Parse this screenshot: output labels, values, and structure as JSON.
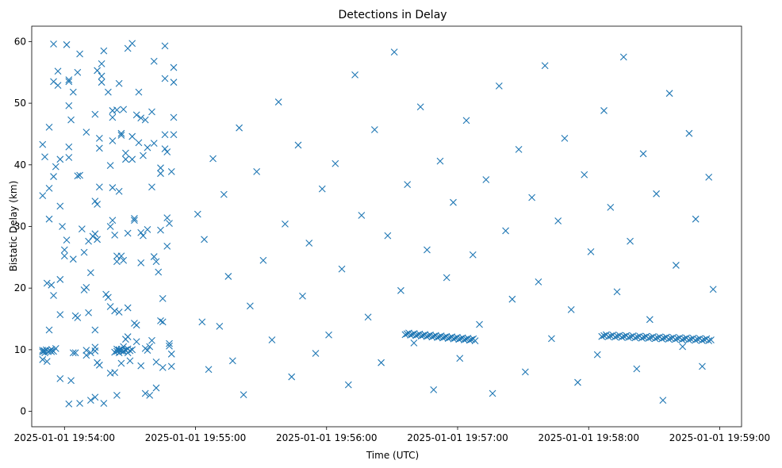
{
  "chart_data": {
    "type": "scatter",
    "title": "Detections in Delay",
    "xlabel": "Time (UTC)",
    "ylabel": "Bistatic Delay (km)",
    "marker": "x",
    "color": "#1f77b4",
    "grid": false,
    "legend": "none",
    "xlim": [
      "2025-01-01 19:53:45",
      "2025-01-01 19:59:10"
    ],
    "ylim": [
      -2.5,
      62.5
    ],
    "x_ticks": [
      "2025-01-01 19:54:00",
      "2025-01-01 19:55:00",
      "2025-01-01 19:56:00",
      "2025-01-01 19:57:00",
      "2025-01-01 19:58:00",
      "2025-01-01 19:59:00"
    ],
    "y_ticks": [
      0,
      10,
      20,
      30,
      40,
      50,
      60
    ],
    "points": [
      [
        "2025-01-01 19:53:50",
        43.3
      ],
      [
        "2025-01-01 19:53:50",
        35.0
      ],
      [
        "2025-01-01 19:53:51",
        41.3
      ],
      [
        "2025-01-01 19:53:52",
        20.8
      ],
      [
        "2025-01-01 19:53:50",
        9.9
      ],
      [
        "2025-01-01 19:53:51",
        9.5
      ],
      [
        "2025-01-01 19:53:52",
        8.1
      ],
      [
        "2025-01-01 19:53:50",
        8.4
      ],
      [
        "2025-01-01 19:53:53",
        36.2
      ],
      [
        "2025-01-01 19:53:53",
        46.1
      ],
      [
        "2025-01-01 19:53:53",
        31.2
      ],
      [
        "2025-01-01 19:53:54",
        20.5
      ],
      [
        "2025-01-01 19:53:53",
        13.2
      ],
      [
        "2025-01-01 19:53:55",
        59.6
      ],
      [
        "2025-01-01 19:53:55",
        53.5
      ],
      [
        "2025-01-01 19:53:55",
        38.1
      ],
      [
        "2025-01-01 19:53:55",
        18.8
      ],
      [
        "2025-01-01 19:53:54",
        9.7
      ],
      [
        "2025-01-01 19:53:56",
        10.2
      ],
      [
        "2025-01-01 19:53:56",
        39.7
      ],
      [
        "2025-01-01 19:53:57",
        55.2
      ],
      [
        "2025-01-01 19:53:57",
        52.9
      ],
      [
        "2025-01-01 19:53:58",
        40.9
      ],
      [
        "2025-01-01 19:53:58",
        33.3
      ],
      [
        "2025-01-01 19:53:58",
        21.4
      ],
      [
        "2025-01-01 19:53:58",
        15.7
      ],
      [
        "2025-01-01 19:53:58",
        5.3
      ],
      [
        "2025-01-01 19:53:59",
        30.0
      ],
      [
        "2025-01-01 19:54:00",
        26.2
      ],
      [
        "2025-01-01 19:54:00",
        25.2
      ],
      [
        "2025-01-01 19:54:01",
        59.5
      ],
      [
        "2025-01-01 19:54:02",
        53.8
      ],
      [
        "2025-01-01 19:54:02",
        53.5
      ],
      [
        "2025-01-01 19:54:02",
        49.6
      ],
      [
        "2025-01-01 19:54:01",
        27.8
      ],
      [
        "2025-01-01 19:54:02",
        42.9
      ],
      [
        "2025-01-01 19:54:02",
        41.2
      ],
      [
        "2025-01-01 19:54:03",
        47.3
      ],
      [
        "2025-01-01 19:54:02",
        1.2
      ],
      [
        "2025-01-01 19:54:04",
        51.8
      ],
      [
        "2025-01-01 19:54:04",
        24.7
      ],
      [
        "2025-01-01 19:54:03",
        5.0
      ],
      [
        "2025-01-01 19:54:04",
        9.5
      ],
      [
        "2025-01-01 19:54:05",
        9.5
      ],
      [
        "2025-01-01 19:54:05",
        15.5
      ],
      [
        "2025-01-01 19:54:06",
        15.2
      ],
      [
        "2025-01-01 19:54:06",
        38.2
      ],
      [
        "2025-01-01 19:54:07",
        58.0
      ],
      [
        "2025-01-01 19:54:06",
        55.0
      ],
      [
        "2025-01-01 19:54:07",
        38.3
      ],
      [
        "2025-01-01 19:54:07",
        1.3
      ],
      [
        "2025-01-01 19:54:08",
        29.6
      ],
      [
        "2025-01-01 19:54:09",
        25.8
      ],
      [
        "2025-01-01 19:54:09",
        19.7
      ],
      [
        "2025-01-01 19:54:10",
        20.1
      ],
      [
        "2025-01-01 19:54:10",
        45.3
      ],
      [
        "2025-01-01 19:54:10",
        9.9
      ],
      [
        "2025-01-01 19:54:10",
        9.1
      ],
      [
        "2025-01-01 19:54:11",
        27.6
      ],
      [
        "2025-01-01 19:54:12",
        22.5
      ],
      [
        "2025-01-01 19:54:11",
        16.0
      ],
      [
        "2025-01-01 19:54:12",
        9.5
      ],
      [
        "2025-01-01 19:54:12",
        1.8
      ],
      [
        "2025-01-01 19:54:14",
        48.2
      ],
      [
        "2025-01-01 19:54:14",
        34.1
      ],
      [
        "2025-01-01 19:54:14",
        28.8
      ],
      [
        "2025-01-01 19:54:13",
        28.4
      ],
      [
        "2025-01-01 19:54:14",
        13.2
      ],
      [
        "2025-01-01 19:54:14",
        10.4
      ],
      [
        "2025-01-01 19:54:14",
        9.8
      ],
      [
        "2025-01-01 19:54:14",
        2.3
      ],
      [
        "2025-01-01 19:54:15",
        55.3
      ],
      [
        "2025-01-01 19:54:15",
        33.6
      ],
      [
        "2025-01-01 19:54:15",
        27.9
      ],
      [
        "2025-01-01 19:54:16",
        44.3
      ],
      [
        "2025-01-01 19:54:16",
        42.7
      ],
      [
        "2025-01-01 19:54:16",
        36.4
      ],
      [
        "2025-01-01 19:54:15",
        7.9
      ],
      [
        "2025-01-01 19:54:16",
        7.5
      ],
      [
        "2025-01-01 19:54:17",
        56.4
      ],
      [
        "2025-01-01 19:54:17",
        54.4
      ],
      [
        "2025-01-01 19:54:17",
        53.4
      ],
      [
        "2025-01-01 19:54:18",
        58.5
      ],
      [
        "2025-01-01 19:54:18",
        1.3
      ],
      [
        "2025-01-01 19:54:19",
        19.0
      ],
      [
        "2025-01-01 19:54:20",
        18.5
      ],
      [
        "2025-01-01 19:54:20",
        51.8
      ],
      [
        "2025-01-01 19:54:21",
        39.9
      ],
      [
        "2025-01-01 19:54:21",
        30.0
      ],
      [
        "2025-01-01 19:54:21",
        17.0
      ],
      [
        "2025-01-01 19:54:21",
        6.2
      ],
      [
        "2025-01-01 19:54:22",
        48.8
      ],
      [
        "2025-01-01 19:54:22",
        47.7
      ],
      [
        "2025-01-01 19:54:22",
        43.9
      ],
      [
        "2025-01-01 19:54:22",
        36.3
      ],
      [
        "2025-01-01 19:54:22",
        31.0
      ],
      [
        "2025-01-01 19:54:23",
        28.6
      ],
      [
        "2025-01-01 19:54:23",
        16.3
      ],
      [
        "2025-01-01 19:54:23",
        9.6
      ],
      [
        "2025-01-01 19:54:23",
        6.3
      ],
      [
        "2025-01-01 19:54:24",
        48.9
      ],
      [
        "2025-01-01 19:54:24",
        25.2
      ],
      [
        "2025-01-01 19:54:24",
        24.3
      ],
      [
        "2025-01-01 19:54:24",
        10.1
      ],
      [
        "2025-01-01 19:54:24",
        2.6
      ],
      [
        "2025-01-01 19:54:25",
        53.2
      ],
      [
        "2025-01-01 19:54:25",
        35.7
      ],
      [
        "2025-01-01 19:54:25",
        16.1
      ],
      [
        "2025-01-01 19:54:25",
        10.0
      ],
      [
        "2025-01-01 19:54:25",
        9.5
      ],
      [
        "2025-01-01 19:54:26",
        44.8
      ],
      [
        "2025-01-01 19:54:26",
        45.1
      ],
      [
        "2025-01-01 19:54:26",
        25.2
      ],
      [
        "2025-01-01 19:54:26",
        9.8
      ],
      [
        "2025-01-01 19:54:26",
        7.8
      ],
      [
        "2025-01-01 19:54:27",
        49.0
      ],
      [
        "2025-01-01 19:54:27",
        24.5
      ],
      [
        "2025-01-01 19:54:27",
        10.5
      ],
      [
        "2025-01-01 19:54:27",
        9.7
      ],
      [
        "2025-01-01 19:54:28",
        41.9
      ],
      [
        "2025-01-01 19:54:28",
        40.9
      ],
      [
        "2025-01-01 19:54:28",
        11.7
      ],
      [
        "2025-01-01 19:54:29",
        58.9
      ],
      [
        "2025-01-01 19:54:29",
        28.9
      ],
      [
        "2025-01-01 19:54:29",
        16.8
      ],
      [
        "2025-01-01 19:54:29",
        12.1
      ],
      [
        "2025-01-01 19:54:29",
        9.5
      ],
      [
        "2025-01-01 19:54:30",
        8.2
      ],
      [
        "2025-01-01 19:54:31",
        59.7
      ],
      [
        "2025-01-01 19:54:31",
        44.6
      ],
      [
        "2025-01-01 19:54:31",
        40.9
      ],
      [
        "2025-01-01 19:54:32",
        31.0
      ],
      [
        "2025-01-01 19:54:32",
        31.3
      ],
      [
        "2025-01-01 19:54:32",
        14.3
      ],
      [
        "2025-01-01 19:54:33",
        14.0
      ],
      [
        "2025-01-01 19:54:33",
        11.3
      ],
      [
        "2025-01-01 19:54:33",
        48.1
      ],
      [
        "2025-01-01 19:54:34",
        51.8
      ],
      [
        "2025-01-01 19:54:34",
        43.6
      ],
      [
        "2025-01-01 19:54:35",
        47.6
      ],
      [
        "2025-01-01 19:54:35",
        29.0
      ],
      [
        "2025-01-01 19:54:35",
        24.1
      ],
      [
        "2025-01-01 19:54:35",
        7.4
      ],
      [
        "2025-01-01 19:54:36",
        41.5
      ],
      [
        "2025-01-01 19:54:36",
        28.5
      ],
      [
        "2025-01-01 19:54:37",
        47.3
      ],
      [
        "2025-01-01 19:54:37",
        10.2
      ],
      [
        "2025-01-01 19:54:37",
        2.9
      ],
      [
        "2025-01-01 19:54:38",
        42.8
      ],
      [
        "2025-01-01 19:54:38",
        29.5
      ],
      [
        "2025-01-01 19:54:38",
        9.9
      ],
      [
        "2025-01-01 19:54:39",
        10.5
      ],
      [
        "2025-01-01 19:54:39",
        2.6
      ],
      [
        "2025-01-01 19:54:40",
        48.6
      ],
      [
        "2025-01-01 19:54:40",
        36.4
      ],
      [
        "2025-01-01 19:54:40",
        11.5
      ],
      [
        "2025-01-01 19:54:41",
        56.8
      ],
      [
        "2025-01-01 19:54:41",
        43.5
      ],
      [
        "2025-01-01 19:54:41",
        25.1
      ],
      [
        "2025-01-01 19:54:42",
        24.3
      ],
      [
        "2025-01-01 19:54:42",
        8.0
      ],
      [
        "2025-01-01 19:54:42",
        3.8
      ],
      [
        "2025-01-01 19:54:43",
        22.6
      ],
      [
        "2025-01-01 19:54:44",
        39.5
      ],
      [
        "2025-01-01 19:54:44",
        38.6
      ],
      [
        "2025-01-01 19:54:44",
        29.4
      ],
      [
        "2025-01-01 19:54:44",
        14.7
      ],
      [
        "2025-01-01 19:54:45",
        18.3
      ],
      [
        "2025-01-01 19:54:45",
        14.5
      ],
      [
        "2025-01-01 19:54:45",
        7.1
      ],
      [
        "2025-01-01 19:54:46",
        59.3
      ],
      [
        "2025-01-01 19:54:46",
        54.0
      ],
      [
        "2025-01-01 19:54:46",
        44.9
      ],
      [
        "2025-01-01 19:54:46",
        42.6
      ],
      [
        "2025-01-01 19:54:47",
        42.1
      ],
      [
        "2025-01-01 19:54:47",
        31.4
      ],
      [
        "2025-01-01 19:54:47",
        26.8
      ],
      [
        "2025-01-01 19:54:48",
        30.5
      ],
      [
        "2025-01-01 19:54:48",
        10.6
      ],
      [
        "2025-01-01 19:54:48",
        11.0
      ],
      [
        "2025-01-01 19:54:49",
        9.3
      ],
      [
        "2025-01-01 19:54:49",
        7.3
      ],
      [
        "2025-01-01 19:54:49",
        38.9
      ],
      [
        "2025-01-01 19:54:50",
        55.8
      ],
      [
        "2025-01-01 19:54:50",
        53.4
      ],
      [
        "2025-01-01 19:54:50",
        44.9
      ],
      [
        "2025-01-01 19:54:50",
        47.7
      ],
      [
        "2025-01-01 19:55:01",
        32.0
      ],
      [
        "2025-01-01 19:55:03",
        14.5
      ],
      [
        "2025-01-01 19:55:04",
        27.9
      ],
      [
        "2025-01-01 19:55:06",
        6.8
      ],
      [
        "2025-01-01 19:55:08",
        41.0
      ],
      [
        "2025-01-01 19:55:11",
        13.8
      ],
      [
        "2025-01-01 19:55:13",
        35.2
      ],
      [
        "2025-01-01 19:55:15",
        21.9
      ],
      [
        "2025-01-01 19:55:17",
        8.2
      ],
      [
        "2025-01-01 19:55:20",
        46.0
      ],
      [
        "2025-01-01 19:55:22",
        2.7
      ],
      [
        "2025-01-01 19:55:25",
        17.1
      ],
      [
        "2025-01-01 19:55:28",
        38.9
      ],
      [
        "2025-01-01 19:55:31",
        24.5
      ],
      [
        "2025-01-01 19:55:35",
        11.6
      ],
      [
        "2025-01-01 19:55:38",
        50.2
      ],
      [
        "2025-01-01 19:55:41",
        30.4
      ],
      [
        "2025-01-01 19:55:44",
        5.6
      ],
      [
        "2025-01-01 19:55:47",
        43.2
      ],
      [
        "2025-01-01 19:55:49",
        18.7
      ],
      [
        "2025-01-01 19:55:52",
        27.3
      ],
      [
        "2025-01-01 19:55:55",
        9.4
      ],
      [
        "2025-01-01 19:55:58",
        36.1
      ],
      [
        "2025-01-01 19:56:01",
        12.4
      ],
      [
        "2025-01-01 19:56:04",
        40.2
      ],
      [
        "2025-01-01 19:56:07",
        23.1
      ],
      [
        "2025-01-01 19:56:10",
        4.3
      ],
      [
        "2025-01-01 19:56:13",
        54.6
      ],
      [
        "2025-01-01 19:56:16",
        31.8
      ],
      [
        "2025-01-01 19:56:19",
        15.3
      ],
      [
        "2025-01-01 19:56:22",
        45.7
      ],
      [
        "2025-01-01 19:56:25",
        7.9
      ],
      [
        "2025-01-01 19:56:28",
        28.5
      ],
      [
        "2025-01-01 19:56:31",
        58.3
      ],
      [
        "2025-01-01 19:56:34",
        19.6
      ],
      [
        "2025-01-01 19:56:37",
        36.8
      ],
      [
        "2025-01-01 19:56:40",
        11.1
      ],
      [
        "2025-01-01 19:56:43",
        49.4
      ],
      [
        "2025-01-01 19:56:46",
        26.2
      ],
      [
        "2025-01-01 19:56:49",
        3.5
      ],
      [
        "2025-01-01 19:56:52",
        40.6
      ],
      [
        "2025-01-01 19:56:55",
        21.7
      ],
      [
        "2025-01-01 19:56:58",
        33.9
      ],
      [
        "2025-01-01 19:57:01",
        8.6
      ],
      [
        "2025-01-01 19:57:04",
        47.2
      ],
      [
        "2025-01-01 19:57:07",
        25.4
      ],
      [
        "2025-01-01 19:57:10",
        14.1
      ],
      [
        "2025-01-01 19:57:13",
        37.6
      ],
      [
        "2025-01-01 19:57:16",
        2.9
      ],
      [
        "2025-01-01 19:57:19",
        52.8
      ],
      [
        "2025-01-01 19:57:22",
        29.3
      ],
      [
        "2025-01-01 19:57:25",
        18.2
      ],
      [
        "2025-01-01 19:57:28",
        42.5
      ],
      [
        "2025-01-01 19:57:31",
        6.4
      ],
      [
        "2025-01-01 19:57:34",
        34.7
      ],
      [
        "2025-01-01 19:57:37",
        21.0
      ],
      [
        "2025-01-01 19:57:40",
        56.1
      ],
      [
        "2025-01-01 19:57:43",
        11.8
      ],
      [
        "2025-01-01 19:57:46",
        30.9
      ],
      [
        "2025-01-01 19:57:49",
        44.3
      ],
      [
        "2025-01-01 19:57:52",
        16.5
      ],
      [
        "2025-01-01 19:57:55",
        4.7
      ],
      [
        "2025-01-01 19:57:58",
        38.4
      ],
      [
        "2025-01-01 19:58:01",
        25.9
      ],
      [
        "2025-01-01 19:58:04",
        9.2
      ],
      [
        "2025-01-01 19:58:07",
        48.8
      ],
      [
        "2025-01-01 19:58:10",
        33.1
      ],
      [
        "2025-01-01 19:58:13",
        19.4
      ],
      [
        "2025-01-01 19:58:16",
        57.5
      ],
      [
        "2025-01-01 19:58:19",
        27.6
      ],
      [
        "2025-01-01 19:58:22",
        6.9
      ],
      [
        "2025-01-01 19:58:25",
        41.8
      ],
      [
        "2025-01-01 19:58:28",
        14.9
      ],
      [
        "2025-01-01 19:58:31",
        35.3
      ],
      [
        "2025-01-01 19:58:34",
        1.8
      ],
      [
        "2025-01-01 19:58:37",
        51.6
      ],
      [
        "2025-01-01 19:58:40",
        23.7
      ],
      [
        "2025-01-01 19:58:43",
        10.5
      ],
      [
        "2025-01-01 19:58:46",
        45.1
      ],
      [
        "2025-01-01 19:58:49",
        31.2
      ],
      [
        "2025-01-01 19:58:52",
        7.3
      ],
      [
        "2025-01-01 19:58:55",
        38.0
      ],
      [
        "2025-01-01 19:58:57",
        19.8
      ]
    ],
    "tracks": [
      {
        "t0": "2025-01-01 19:56:36",
        "t1": "2025-01-01 19:57:08",
        "y0": 12.6,
        "y1": 11.6,
        "n": 40
      },
      {
        "t0": "2025-01-01 19:58:06",
        "t1": "2025-01-01 19:58:56",
        "y0": 12.3,
        "y1": 11.6,
        "n": 50
      },
      {
        "t0": "2025-01-01 19:54:24",
        "t1": "2025-01-01 19:54:31",
        "y0": 9.9,
        "y1": 10.0,
        "n": 8
      },
      {
        "t0": "2025-01-01 19:53:50",
        "t1": "2025-01-01 19:53:55",
        "y0": 9.8,
        "y1": 9.9,
        "n": 7
      }
    ]
  }
}
